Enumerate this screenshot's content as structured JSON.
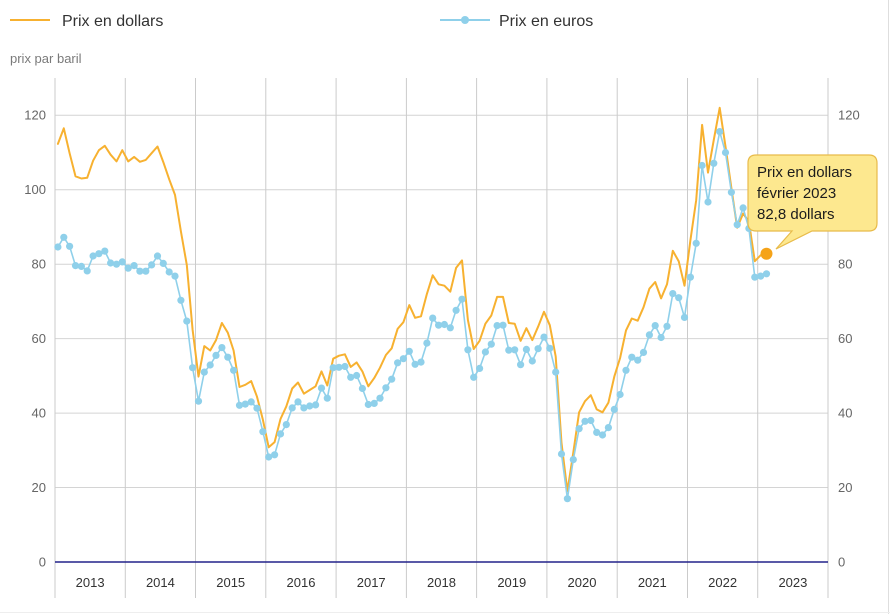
{
  "chart_data": {
    "type": "line",
    "ylabel": "prix par baril",
    "ylim": [
      0,
      130
    ],
    "yticks": [
      0,
      20,
      40,
      60,
      80,
      100,
      120
    ],
    "x_ticks": [
      "2013",
      "2014",
      "2015",
      "2016",
      "2017",
      "2018",
      "2019",
      "2020",
      "2021",
      "2022",
      "2023"
    ],
    "start_year": 2013,
    "start_month": 1,
    "points_per_year": 12,
    "grid": true,
    "grid_color": "#d4d4d4",
    "axis_line_color": "#22228a",
    "series": [
      {
        "name": "Prix en dollars",
        "color": "#f7b130",
        "marker": false,
        "values": [
          112.3,
          116.5,
          109.8,
          103.6,
          103.0,
          103.2,
          107.8,
          110.6,
          111.8,
          109.4,
          107.6,
          110.6,
          107.6,
          108.8,
          107.5,
          108.0,
          109.8,
          111.6,
          107.4,
          102.8,
          98.6,
          88.8,
          79.8,
          62.4,
          49.8,
          58.0,
          56.8,
          59.6,
          64.2,
          61.6,
          56.8,
          47.0,
          47.6,
          48.6,
          44.4,
          38.2,
          30.8,
          32.2,
          38.4,
          41.8,
          46.6,
          48.2,
          45.2,
          46.2,
          47.2,
          51.2,
          47.4,
          54.6,
          55.4,
          55.8,
          52.4,
          53.6,
          51.2,
          47.2,
          49.4,
          52.2,
          55.6,
          57.4,
          62.6,
          64.4,
          69.0,
          65.6,
          66.0,
          72.0,
          77.0,
          74.6,
          74.2,
          72.6,
          79.0,
          81.0,
          65.0,
          57.2,
          59.4,
          64.0,
          66.2,
          71.2,
          71.2,
          64.2,
          64.0,
          59.4,
          62.8,
          59.6,
          63.2,
          67.2,
          63.6,
          55.2,
          32.0,
          19.0,
          29.4,
          40.2,
          43.2,
          44.8,
          41.0,
          40.2,
          42.8,
          49.8,
          54.8,
          62.2,
          65.4,
          64.8,
          68.4,
          73.4,
          75.2,
          70.8,
          74.6,
          83.6,
          80.8,
          74.2,
          86.4,
          97.2,
          117.4,
          104.6,
          113.4,
          122.0,
          111.6,
          100.4,
          89.8,
          93.6,
          91.4,
          80.8,
          82.4,
          82.8
        ]
      },
      {
        "name": "Prix en euros",
        "color": "#8fd0ea",
        "marker": true,
        "values": [
          84.6,
          87.2,
          84.8,
          79.6,
          79.4,
          78.2,
          82.2,
          82.8,
          83.5,
          80.3,
          80.0,
          80.6,
          78.9,
          79.6,
          78.1,
          78.1,
          79.8,
          82.2,
          80.2,
          77.9,
          76.8,
          70.3,
          64.7,
          52.2,
          43.2,
          51.0,
          52.9,
          55.5,
          57.6,
          55.0,
          51.5,
          42.1,
          42.4,
          43.0,
          41.3,
          35.0,
          28.2,
          28.8,
          34.4,
          36.9,
          41.4,
          43.0,
          41.4,
          41.9,
          42.2,
          46.7,
          44.0,
          52.2,
          52.3,
          52.5,
          49.6,
          50.1,
          46.6,
          42.3,
          42.6,
          44.0,
          46.8,
          49.1,
          53.5,
          54.6,
          56.6,
          53.1,
          53.7,
          58.8,
          65.5,
          63.6,
          63.8,
          62.9,
          67.6,
          70.6,
          57.0,
          49.6,
          52.0,
          56.4,
          58.5,
          63.5,
          63.6,
          56.9,
          57.0,
          53.0,
          57.1,
          54.0,
          57.3,
          60.4,
          57.4,
          51.0,
          29.0,
          17.0,
          27.5,
          35.8,
          37.8,
          38.0,
          34.8,
          34.1,
          36.1,
          41.0,
          45.0,
          51.5,
          55.0,
          54.2,
          56.3,
          61.0,
          63.5,
          60.3,
          63.3,
          72.1,
          71.0,
          65.7,
          76.5,
          85.6,
          106.5,
          96.7,
          107.1,
          115.6,
          110.0,
          99.3,
          90.6,
          95.1,
          89.6,
          76.5,
          76.8,
          77.4
        ]
      }
    ],
    "tooltip": {
      "series_index": 0,
      "point_index": 121,
      "series_label": "Prix en dollars",
      "period": "février 2023",
      "value_text": "82,8 dollars",
      "value": 82.8,
      "fill": "#fde88f",
      "border": "#e8bb4a",
      "highlight_color": "#f5a318"
    }
  }
}
